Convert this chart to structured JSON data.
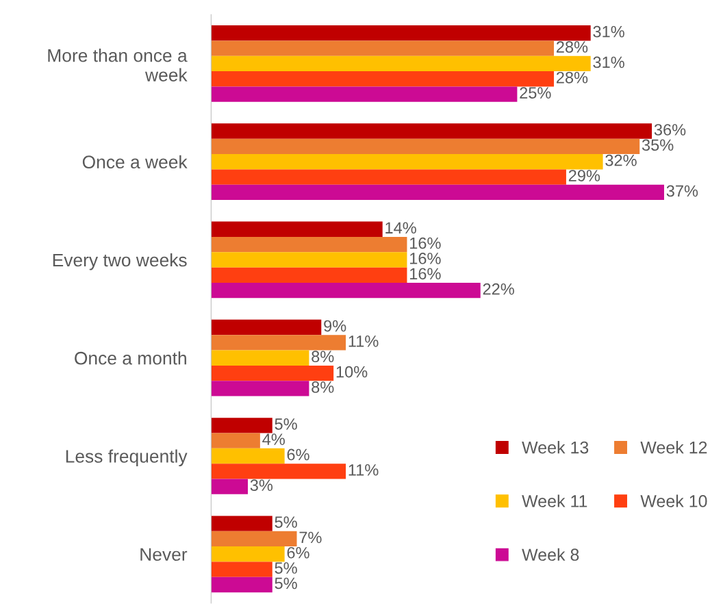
{
  "chart_data": {
    "type": "bar",
    "orientation": "horizontal",
    "categories": [
      "More than once a week",
      "Once a week",
      "Every two weeks",
      "Once a month",
      "Less frequently",
      "Never"
    ],
    "series": [
      {
        "name": "Week 13",
        "color": "#c00000",
        "values": [
          31,
          36,
          14,
          9,
          5,
          5
        ],
        "value_labels": [
          "31%",
          "36%",
          "14%",
          "9%",
          "5%",
          "5%"
        ]
      },
      {
        "name": "Week 12",
        "color": "#ed7d31",
        "values": [
          28,
          35,
          16,
          11,
          4,
          7
        ],
        "value_labels": [
          "28%",
          "35%",
          "16%",
          "11%",
          "4%",
          "7%"
        ]
      },
      {
        "name": "Week 11",
        "color": "#ffc000",
        "values": [
          31,
          32,
          16,
          8,
          6,
          6
        ],
        "value_labels": [
          "31%",
          "32%",
          "16%",
          "8%",
          "6%",
          "6%"
        ]
      },
      {
        "name": "Week 10",
        "color": "#ff3f11",
        "values": [
          28,
          29,
          16,
          10,
          11,
          5
        ],
        "value_labels": [
          "28%",
          "29%",
          "16%",
          "10%",
          "11%",
          "5%"
        ]
      },
      {
        "name": "Week 8",
        "color": "#cc0a94",
        "values": [
          25,
          37,
          22,
          8,
          3,
          5
        ],
        "value_labels": [
          "25%",
          "37%",
          "22%",
          "8%",
          "3%",
          "5%"
        ]
      }
    ],
    "tick_labels": "y",
    "grid": false,
    "legend": "bottom right"
  }
}
